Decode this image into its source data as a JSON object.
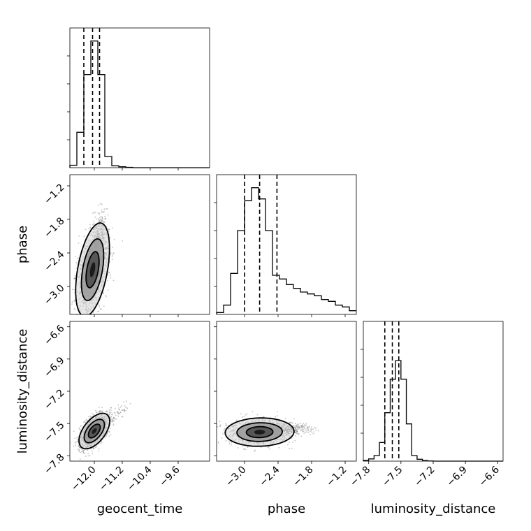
{
  "chart_data": {
    "type": "scatter",
    "parameters": [
      {
        "label": "geocent_time",
        "range": [
          -12.7,
          -8.7
        ],
        "ticks": [
          -12.0,
          -11.2,
          -10.4,
          -9.6
        ],
        "tick_labels": [
          "−12.0",
          "−11.2",
          "−10.4",
          "−9.6"
        ],
        "quantiles": [
          -12.3,
          -12.05,
          -11.85
        ],
        "hist_edges": [
          -12.7,
          -12.5,
          -12.3,
          -12.1,
          -11.9,
          -11.7,
          -11.5,
          -11.3,
          -11.1,
          -10.9,
          -10.7,
          -10.5,
          -10.3,
          -10.1,
          -9.9,
          -9.7,
          -9.5,
          -9.3,
          -9.1,
          -8.9,
          -8.7
        ],
        "hist_counts": [
          0.013,
          0.19,
          0.5,
          0.68,
          0.5,
          0.06,
          0.01,
          0.005,
          0.002,
          0,
          0,
          0,
          0,
          0,
          0,
          0,
          0,
          0,
          0,
          0
        ]
      },
      {
        "label": "phase",
        "range": [
          -3.5,
          -1.0
        ],
        "ticks": [
          -3.0,
          -2.4,
          -1.8,
          -1.2
        ],
        "tick_labels": [
          "−3.0",
          "−2.4",
          "−1.8",
          "−1.2"
        ],
        "quantiles": [
          -3.0,
          -2.73,
          -2.42
        ],
        "hist_edges": [
          -3.5,
          -3.375,
          -3.25,
          -3.125,
          -3.0,
          -2.875,
          -2.75,
          -2.625,
          -2.5,
          -2.375,
          -2.25,
          -2.125,
          -2.0,
          -1.875,
          -1.75,
          -1.625,
          -1.5,
          -1.375,
          -1.25,
          -1.125,
          -1.0
        ],
        "hist_counts": [
          0.01,
          0.05,
          0.22,
          0.45,
          0.61,
          0.68,
          0.62,
          0.45,
          0.21,
          0.19,
          0.16,
          0.14,
          0.12,
          0.11,
          0.1,
          0.08,
          0.07,
          0.05,
          0.04,
          0.02
        ]
      },
      {
        "label": "luminosity_distance",
        "range": [
          -7.85,
          -6.55
        ],
        "ticks": [
          -7.8,
          -7.5,
          -7.2,
          -6.9,
          -6.6
        ],
        "tick_labels": [
          "−7.8",
          "−7.5",
          "−7.2",
          "−6.9",
          "−6.6"
        ],
        "quantiles": [
          -7.65,
          -7.58,
          -7.52
        ],
        "hist_edges": [
          -7.85,
          -7.8,
          -7.75,
          -7.7,
          -7.65,
          -7.6,
          -7.55,
          -7.5,
          -7.45,
          -7.4,
          -7.35,
          -7.3,
          -7.25,
          -7.2,
          -7.15,
          -7.1,
          -7.05,
          -7.0,
          -6.95,
          -6.9,
          -6.85,
          -6.8,
          -6.75,
          -6.7,
          -6.65,
          -6.6,
          -6.55
        ],
        "hist_counts": [
          0.004,
          0.012,
          0.03,
          0.1,
          0.26,
          0.44,
          0.54,
          0.44,
          0.2,
          0.03,
          0.01,
          0.003,
          0.001,
          0,
          0,
          0,
          0,
          0,
          0,
          0,
          0,
          0,
          0,
          0,
          0,
          0
        ]
      }
    ],
    "diagonal_ylim": [
      0,
      0.75
    ],
    "histogram_scale": "per-panel, arbitrary units (no tick labels printed)",
    "scatter_panels": [
      {
        "x": "geocent_time",
        "y": "phase",
        "center": [
          -12.05,
          -2.7
        ],
        "spread": [
          0.22,
          0.38
        ],
        "correlation": 0.45,
        "tail": {
          "direction": [
            0.2,
            0.65
          ],
          "extent": [
            0,
            1.4
          ],
          "fraction": 0.28
        },
        "contour_levels": [
          0.12,
          0.39,
          0.86
        ]
      },
      {
        "x": "geocent_time",
        "y": "luminosity_distance",
        "center": [
          -12.0,
          -7.57
        ],
        "spread": [
          0.2,
          0.075
        ],
        "correlation": 0.55,
        "tail": {
          "direction": [
            0.8,
            0.2
          ],
          "extent": [
            0.2,
            1.2
          ],
          "fraction": 0.06
        },
        "contour_levels": [
          0.12,
          0.39,
          0.86
        ]
      },
      {
        "x": "phase",
        "y": "luminosity_distance",
        "center": [
          -2.73,
          -7.58
        ],
        "spread": [
          0.28,
          0.06
        ],
        "correlation": 0.05,
        "tail": {
          "direction": [
            0.55,
            0.02
          ],
          "extent": [
            0.1,
            1.5
          ],
          "fraction": 0.3
        },
        "contour_levels": [
          0.12,
          0.39,
          0.86
        ]
      }
    ],
    "grid": true,
    "colors": {
      "axes": "#000000",
      "grid": "#b0b0b0",
      "points": "#777777",
      "fill_dark": "#111111"
    }
  }
}
